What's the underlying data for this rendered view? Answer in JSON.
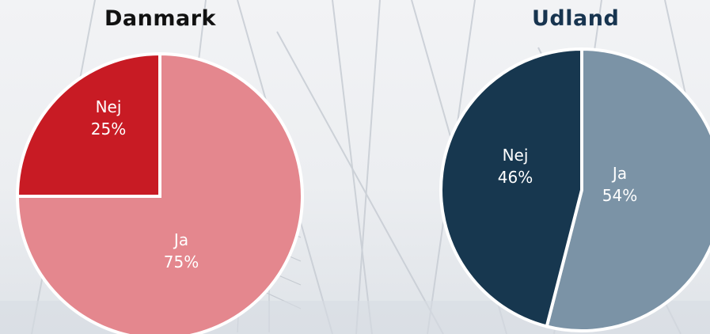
{
  "chart_data": [
    {
      "type": "pie",
      "title": "Danmark",
      "title_color": "#111111",
      "slices": [
        {
          "label": "Nej",
          "value": 25,
          "value_label": "25%",
          "color": "#c81b24"
        },
        {
          "label": "Ja",
          "value": 75,
          "value_label": "75%",
          "color": "#e4878e"
        }
      ]
    },
    {
      "type": "pie",
      "title": "Udland",
      "title_color": "#17344f",
      "slices": [
        {
          "label": "Nej",
          "value": 46,
          "value_label": "46%",
          "color": "#17374f"
        },
        {
          "label": "Ja",
          "value": 54,
          "value_label": "54%",
          "color": "#7b93a6"
        }
      ]
    }
  ]
}
